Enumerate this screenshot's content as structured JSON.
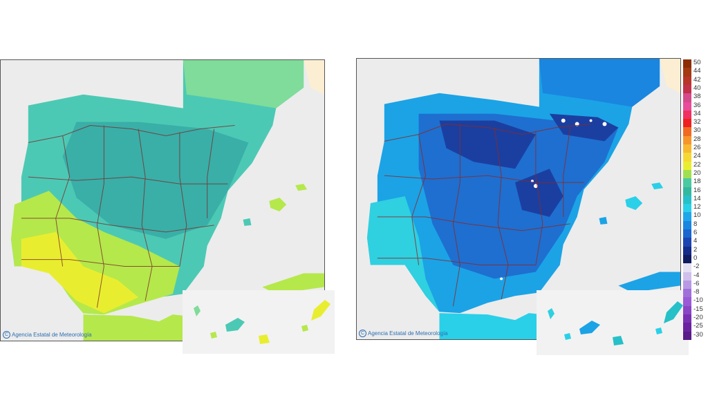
{
  "maps": [
    {
      "id": "left",
      "credit": "Agencia Estatal de Meteorología"
    },
    {
      "id": "right",
      "credit": "Agencia Estatal de Meteorología"
    }
  ],
  "colors": {
    "background": "#ececec",
    "border": "#c13030",
    "left_base": "#4cc9b4",
    "left_north": "#33a7a0",
    "left_interior": "#3bb2a7",
    "left_warm": "#b5e84b",
    "left_hot": "#e8ee2f",
    "left_cool": "#7fdc9a",
    "right_base": "#1ba3e6",
    "right_coast": "#2fd0e0",
    "right_interior": "#1e6fd0",
    "right_cold": "#1b3fa0",
    "right_snow": "#ffffff",
    "france": "#fbeed3"
  },
  "legend": {
    "scale": [
      {
        "label": "50",
        "color": "#8c2d04"
      },
      {
        "label": "44",
        "color": "#a33a12"
      },
      {
        "label": "42",
        "color": "#b8352a"
      },
      {
        "label": "40",
        "color": "#c2304a"
      },
      {
        "label": "38",
        "color": "#d44a8a"
      },
      {
        "label": "36",
        "color": "#e84c9a"
      },
      {
        "label": "34",
        "color": "#f03060"
      },
      {
        "label": "32",
        "color": "#ee2020"
      },
      {
        "label": "30",
        "color": "#f26a22"
      },
      {
        "label": "28",
        "color": "#f6962a"
      },
      {
        "label": "26",
        "color": "#f8b830"
      },
      {
        "label": "24",
        "color": "#f6d832"
      },
      {
        "label": "22",
        "color": "#e8ee2f"
      },
      {
        "label": "20",
        "color": "#a0e050"
      },
      {
        "label": "18",
        "color": "#4cc9a0"
      },
      {
        "label": "16",
        "color": "#33b8a0"
      },
      {
        "label": "14",
        "color": "#26c0c8"
      },
      {
        "label": "12",
        "color": "#2ad0e8"
      },
      {
        "label": "10",
        "color": "#1ea6ea"
      },
      {
        "label": "8",
        "color": "#1a86e0"
      },
      {
        "label": "6",
        "color": "#1b66d0"
      },
      {
        "label": "4",
        "color": "#1b45b0"
      },
      {
        "label": "2",
        "color": "#142c8a"
      },
      {
        "label": "0",
        "color": "#101c60"
      },
      {
        "label": "-2",
        "color": "#e6e0f4"
      },
      {
        "label": "-4",
        "color": "#d0c0ec"
      },
      {
        "label": "-6",
        "color": "#b89ae4"
      },
      {
        "label": "-8",
        "color": "#a070da"
      },
      {
        "label": "-10",
        "color": "#9a5ad6"
      },
      {
        "label": "-15",
        "color": "#8a46c4"
      },
      {
        "label": "-20",
        "color": "#7a30b2"
      },
      {
        "label": "-25",
        "color": "#6a22a0"
      },
      {
        "label": "-30",
        "color": "#5a1a88"
      }
    ]
  }
}
